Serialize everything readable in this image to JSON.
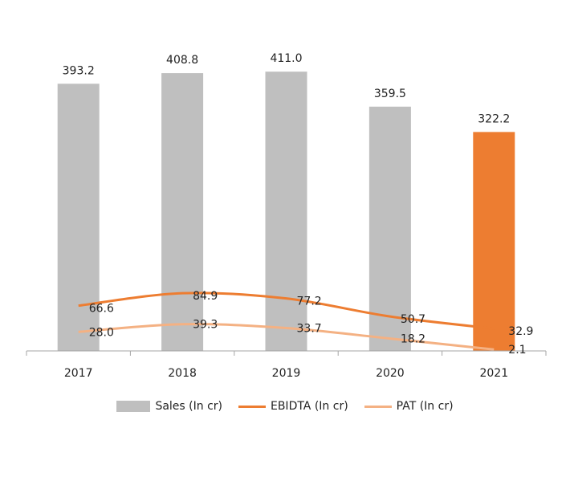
{
  "chart_data": {
    "type": "bar",
    "categories": [
      "2017",
      "2018",
      "2019",
      "2020",
      "2021"
    ],
    "ylim": [
      0,
      455
    ],
    "series": [
      {
        "name": "Sales (In cr)",
        "kind": "bar",
        "values": [
          393.2,
          408.8,
          411.0,
          359.5,
          322.2
        ],
        "labels": [
          "393.2",
          "408.8",
          "411.0",
          "359.5",
          "322.2"
        ],
        "color": "#bfbfbf",
        "highlight_color": "#ed7d31",
        "highlight_index": 4
      },
      {
        "name": "EBIDTA (In cr)",
        "kind": "line",
        "values": [
          66.6,
          84.9,
          77.2,
          50.7,
          32.9
        ],
        "labels": [
          "66.6",
          "84.9",
          "77.2",
          "50.7",
          "32.9"
        ],
        "color": "#ed7d31"
      },
      {
        "name": "PAT (In cr)",
        "kind": "line",
        "values": [
          28.0,
          39.3,
          33.7,
          18.2,
          2.1
        ],
        "labels": [
          "28.0",
          "39.3",
          "33.7",
          "18.2",
          "2.1"
        ],
        "color": "#f4b183"
      }
    ],
    "legend_position": "bottom",
    "grid": false
  }
}
